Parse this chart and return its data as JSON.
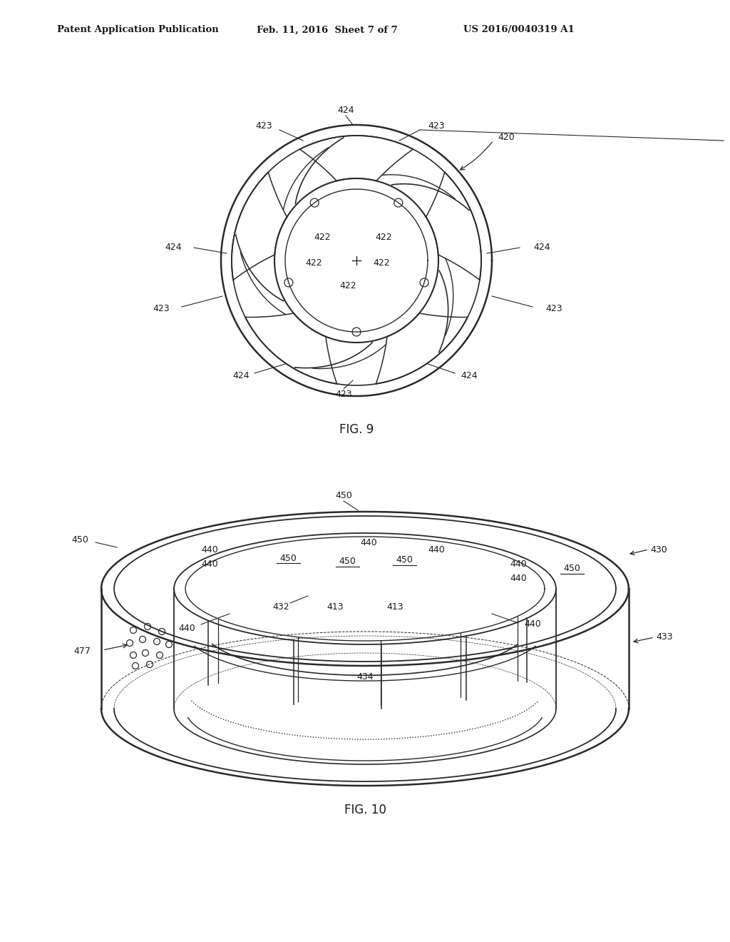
{
  "bg_color": "#ffffff",
  "header_left": "Patent Application Publication",
  "header_mid": "Feb. 11, 2016  Sheet 7 of 7",
  "header_right": "US 2016/0040319 A1",
  "fig9_label": "FIG. 9",
  "fig10_label": "FIG. 10",
  "line_color": "#2a2a2a",
  "text_color": "#1a1a1a"
}
